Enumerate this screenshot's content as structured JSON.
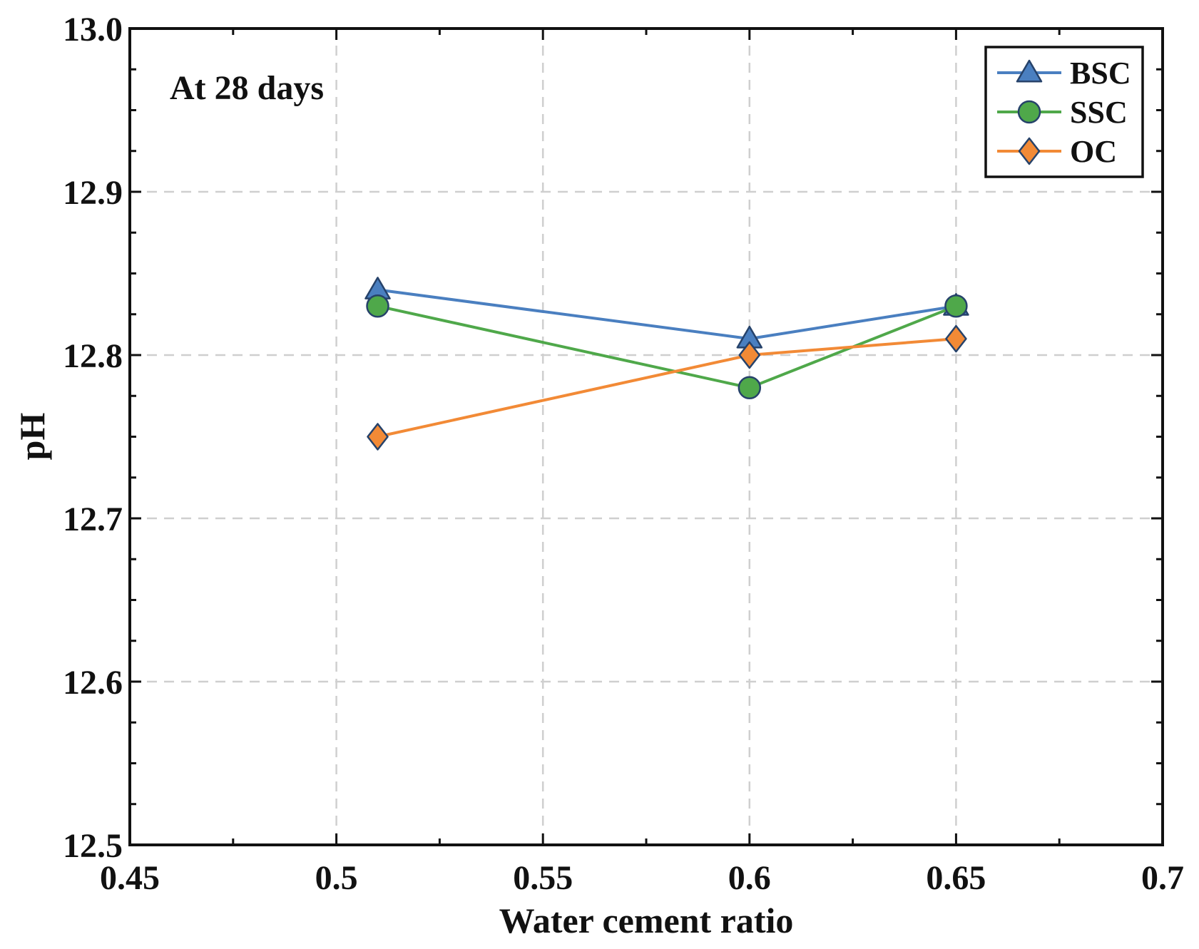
{
  "chart_data": {
    "type": "line",
    "title": "",
    "annotation": "At 28 days",
    "xlabel": "Water cement ratio",
    "ylabel": "pH",
    "xlim": [
      0.45,
      0.7
    ],
    "ylim": [
      12.5,
      13.0
    ],
    "x_ticks": [
      0.45,
      0.5,
      0.55,
      0.6,
      0.65,
      0.7
    ],
    "x_tick_labels": [
      "0.45",
      "0.5",
      "0.55",
      "0.6",
      "0.65",
      "0.7"
    ],
    "y_ticks": [
      12.5,
      12.6,
      12.7,
      12.8,
      12.9,
      13.0
    ],
    "y_tick_labels": [
      "12.5",
      "12.6",
      "12.7",
      "12.8",
      "12.9",
      "13.0"
    ],
    "grid": true,
    "legend_position": "top-right",
    "x": [
      0.51,
      0.6,
      0.65
    ],
    "series": [
      {
        "name": "BSC",
        "values": [
          12.84,
          12.81,
          12.83
        ],
        "color": "#4a7fc0",
        "marker": "triangle"
      },
      {
        "name": "SSC",
        "values": [
          12.83,
          12.78,
          12.83
        ],
        "color": "#4fa84a",
        "marker": "circle"
      },
      {
        "name": "OC",
        "values": [
          12.75,
          12.8,
          12.81
        ],
        "color": "#f28a36",
        "marker": "diamond"
      }
    ],
    "marker_edge_color": "#26426a"
  }
}
